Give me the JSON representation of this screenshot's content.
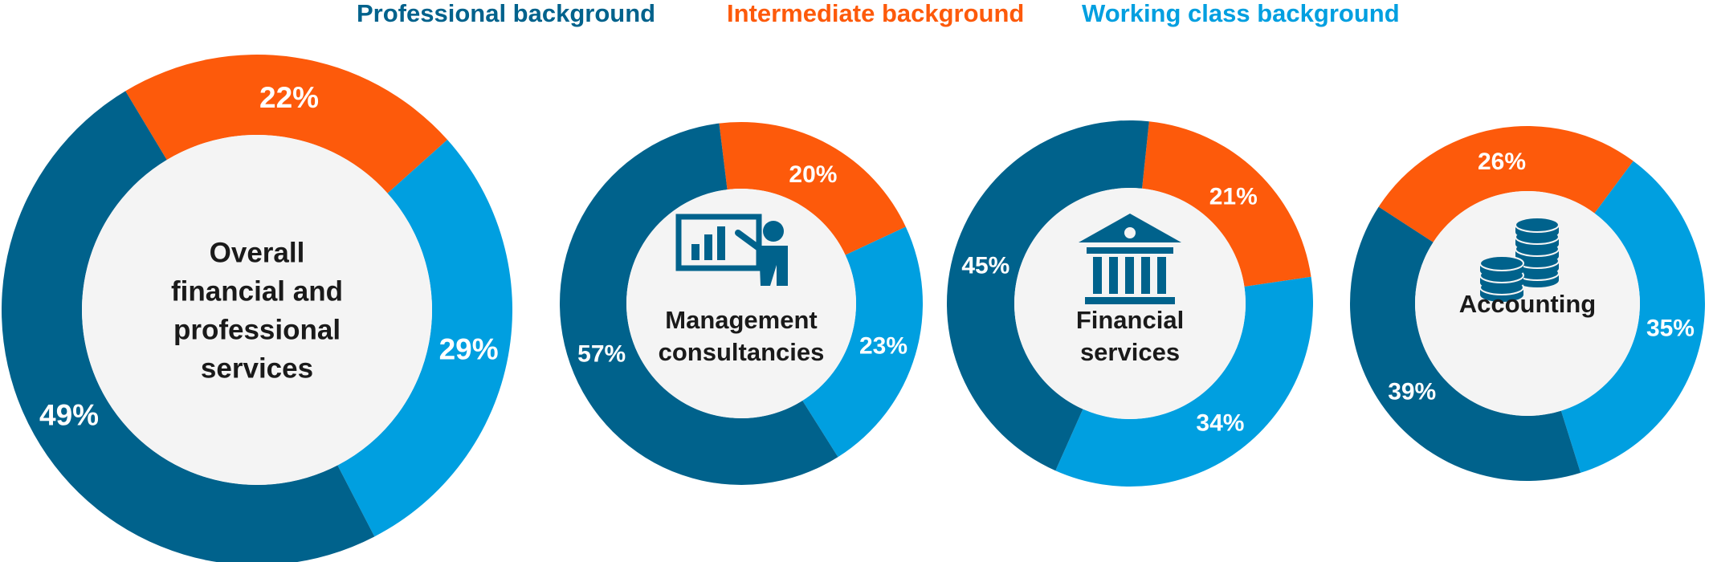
{
  "colors": {
    "professional": "#00628c",
    "intermediate": "#fd5a0b",
    "working": "#009fe0",
    "center": "#f4f4f4"
  },
  "legend": [
    {
      "key": "professional",
      "label": "Professional background"
    },
    {
      "key": "intermediate",
      "label": "Intermediate background"
    },
    {
      "key": "working",
      "label": "Working class background"
    }
  ],
  "chart_data": {
    "type": "pie",
    "series_names": [
      "Professional background",
      "Intermediate background",
      "Working class background"
    ],
    "charts": [
      {
        "title": "Overall financial and professional services",
        "title_lines": [
          "Overall",
          "financial and",
          "professional",
          "services"
        ],
        "icon": "none",
        "values": {
          "intermediate": 22,
          "working": 29,
          "professional": 49
        },
        "labels": {
          "intermediate": "22%",
          "working": "29%",
          "professional": "49%"
        }
      },
      {
        "title": "Management consultancies",
        "title_lines": [
          "Management",
          "consultancies"
        ],
        "icon": "presentation-icon",
        "values": {
          "intermediate": 20,
          "working": 23,
          "professional": 57
        },
        "labels": {
          "intermediate": "20%",
          "working": "23%",
          "professional": "57%"
        }
      },
      {
        "title": "Financial services",
        "title_lines": [
          "Financial",
          "services"
        ],
        "icon": "bank-icon",
        "values": {
          "intermediate": 21,
          "working": 34,
          "professional": 45
        },
        "labels": {
          "intermediate": "21%",
          "working": "34%",
          "professional": "45%"
        }
      },
      {
        "title": "Accounting",
        "title_lines": [
          "Accounting"
        ],
        "icon": "coins-icon",
        "values": {
          "intermediate": 26,
          "working": 35,
          "professional": 39
        },
        "labels": {
          "intermediate": "26%",
          "working": "35%",
          "professional": "39%"
        }
      }
    ]
  }
}
